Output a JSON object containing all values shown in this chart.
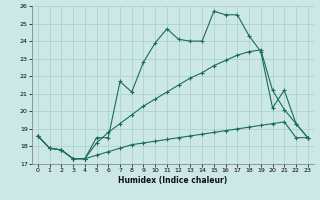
{
  "xlabel": "Humidex (Indice chaleur)",
  "bg_color": "#cce8e6",
  "line_color": "#1a6b5e",
  "grid_color": "#aacfcc",
  "xlim": [
    -0.5,
    23.5
  ],
  "ylim": [
    17,
    26
  ],
  "xticks": [
    0,
    1,
    2,
    3,
    4,
    5,
    6,
    7,
    8,
    9,
    10,
    11,
    12,
    13,
    14,
    15,
    16,
    17,
    18,
    19,
    20,
    21,
    22,
    23
  ],
  "yticks": [
    17,
    18,
    19,
    20,
    21,
    22,
    23,
    24,
    25,
    26
  ],
  "line1_x": [
    0,
    1,
    2,
    3,
    4,
    5,
    6,
    7,
    8,
    9,
    10,
    11,
    12,
    13,
    14,
    15,
    16,
    17,
    18,
    19,
    20,
    21,
    22,
    23
  ],
  "line1_y": [
    18.6,
    17.9,
    17.8,
    17.3,
    17.3,
    18.5,
    18.5,
    21.7,
    21.1,
    22.8,
    23.9,
    24.7,
    24.1,
    24.0,
    24.0,
    25.7,
    25.5,
    25.5,
    24.3,
    23.4,
    20.2,
    21.2,
    19.3,
    18.5
  ],
  "line2_x": [
    0,
    1,
    2,
    3,
    4,
    5,
    6,
    7,
    8,
    9,
    10,
    11,
    12,
    13,
    14,
    15,
    16,
    17,
    18,
    19,
    20,
    21,
    22,
    23
  ],
  "line2_y": [
    18.6,
    17.9,
    17.8,
    17.3,
    17.3,
    18.2,
    18.8,
    19.3,
    19.8,
    20.3,
    20.7,
    21.1,
    21.5,
    21.9,
    22.2,
    22.6,
    22.9,
    23.2,
    23.4,
    23.5,
    21.2,
    20.1,
    19.3,
    18.5
  ],
  "line3_x": [
    0,
    1,
    2,
    3,
    4,
    5,
    6,
    7,
    8,
    9,
    10,
    11,
    12,
    13,
    14,
    15,
    16,
    17,
    18,
    19,
    20,
    21,
    22,
    23
  ],
  "line3_y": [
    18.6,
    17.9,
    17.8,
    17.3,
    17.3,
    17.5,
    17.7,
    17.9,
    18.1,
    18.2,
    18.3,
    18.4,
    18.5,
    18.6,
    18.7,
    18.8,
    18.9,
    19.0,
    19.1,
    19.2,
    19.3,
    19.4,
    18.5,
    18.5
  ]
}
